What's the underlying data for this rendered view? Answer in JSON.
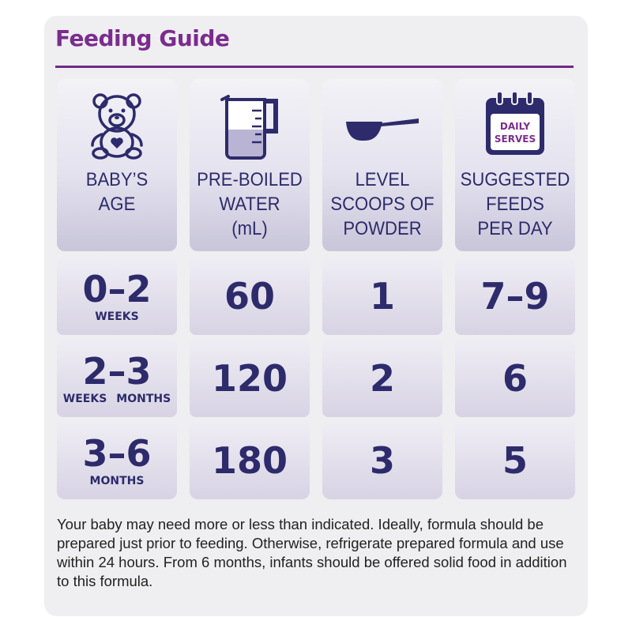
{
  "title": "Feeding Guide",
  "headers": [
    {
      "icon": "teddy-bear-icon",
      "label_lines": [
        "BABY’S",
        "AGE",
        ""
      ]
    },
    {
      "icon": "measuring-jug-icon",
      "label_lines": [
        "PRE-BOILED",
        "WATER",
        "(mL)"
      ]
    },
    {
      "icon": "formula-scoop-icon",
      "label_lines": [
        "LEVEL",
        "SCOOPS OF",
        "POWDER"
      ]
    },
    {
      "icon": "calendar-icon",
      "label_lines": [
        "SUGGESTED",
        "FEEDS",
        "PER DAY"
      ],
      "icon_text": [
        "DAILY",
        "SERVES"
      ]
    }
  ],
  "rows": [
    {
      "age": "0–2",
      "age_units": [
        "WEEKS"
      ],
      "water": "60",
      "scoops": "1",
      "feeds": "7–9"
    },
    {
      "age": "2–3",
      "age_units": [
        "WEEKS",
        "MONTHS"
      ],
      "water": "120",
      "scoops": "2",
      "feeds": "6"
    },
    {
      "age": "3–6",
      "age_units": [
        "MONTHS"
      ],
      "water": "180",
      "scoops": "3",
      "feeds": "5"
    }
  ],
  "footnote": "Your baby may need more or less than indicated. Ideally, formula should be prepared just prior to feeding. Otherwise, refrigerate prepared formula and use within 24 hours. From 6 months, infants should be offered solid food in addition to this formula.",
  "colors": {
    "title": "#7a2c8f",
    "navy": "#2d2b6b",
    "card": "#efeef0"
  }
}
